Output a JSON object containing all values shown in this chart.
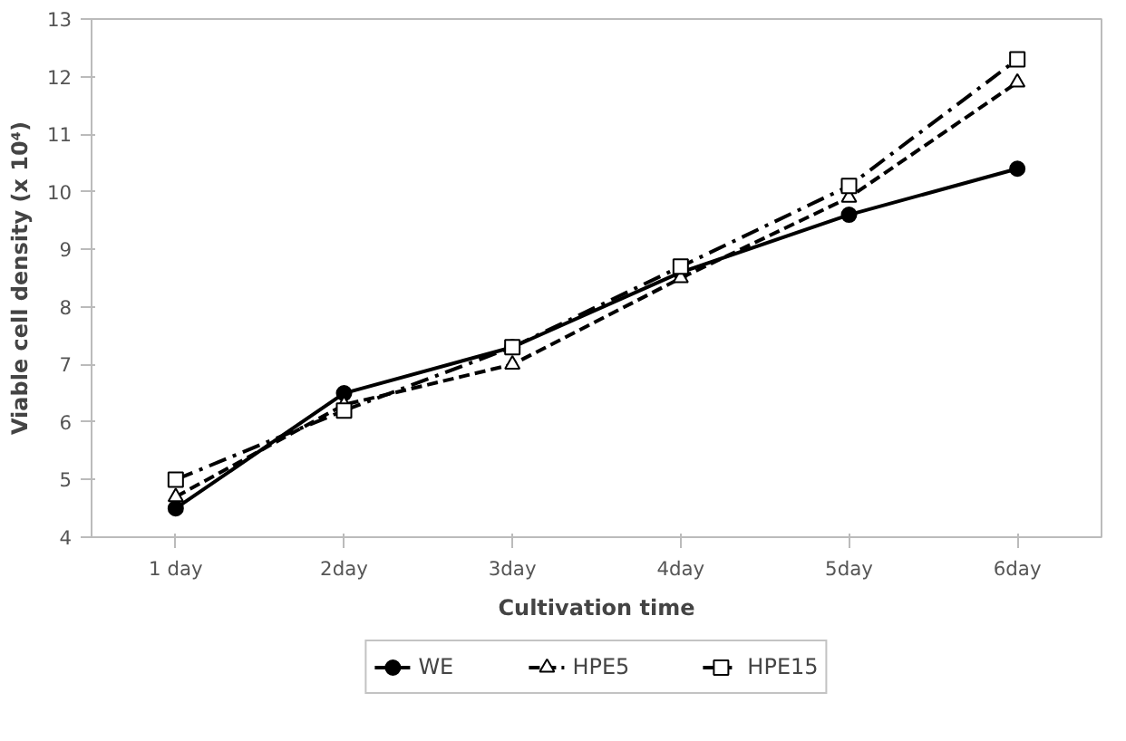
{
  "chart_data": {
    "type": "line",
    "xlabel": "Cultivation time",
    "ylabel": "Viable cell density (x 10⁴)",
    "categories": [
      "1 day",
      "2day",
      "3day",
      "4day",
      "5day",
      "6day"
    ],
    "ylim": [
      4,
      13
    ],
    "yticks": [
      4,
      5,
      6,
      7,
      8,
      9,
      10,
      11,
      12,
      13
    ],
    "grid": false,
    "legend": "bottom",
    "series": [
      {
        "name": "WE",
        "color": "#000000",
        "marker": "circle",
        "line_style": "solid",
        "values": [
          4.5,
          6.5,
          7.3,
          8.6,
          9.6,
          10.4
        ]
      },
      {
        "name": "HPE5",
        "color": "#000000",
        "marker": "triangle",
        "line_style": "dashed",
        "values": [
          4.7,
          6.3,
          7.0,
          8.5,
          9.9,
          11.9
        ]
      },
      {
        "name": "HPE15",
        "color": "#000000",
        "marker": "square",
        "line_style": "dashdot",
        "values": [
          5.0,
          6.2,
          7.3,
          8.7,
          10.1,
          12.3
        ]
      }
    ]
  }
}
